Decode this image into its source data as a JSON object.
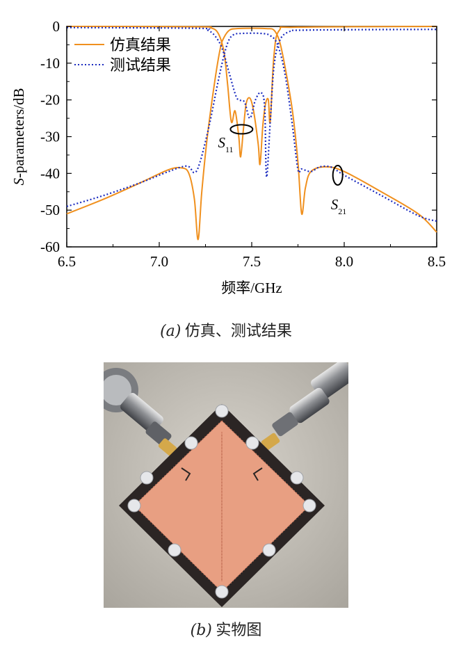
{
  "chart_data": {
    "type": "line",
    "xlabel": "频率/GHz",
    "ylabel_prefix": "S",
    "ylabel_suffix": "-parameters/dB",
    "xlim": [
      6.5,
      8.5
    ],
    "ylim": [
      -60,
      0
    ],
    "x_ticks": [
      "6.5",
      "7.0",
      "7.5",
      "8.0",
      "8.5"
    ],
    "y_ticks": [
      "0",
      "-10",
      "-20",
      "-30",
      "-40",
      "-50",
      "-60"
    ],
    "grid": false,
    "legend_position": "top-left",
    "series": [
      {
        "name": "仿真结果",
        "param": "S21",
        "color": "#f0901e",
        "style": "solid",
        "points": [
          [
            6.5,
            -51
          ],
          [
            6.7,
            -47
          ],
          [
            6.9,
            -42.5
          ],
          [
            7.05,
            -39
          ],
          [
            7.12,
            -38.5
          ],
          [
            7.16,
            -40
          ],
          [
            7.19,
            -47
          ],
          [
            7.21,
            -58
          ],
          [
            7.23,
            -45
          ],
          [
            7.26,
            -30
          ],
          [
            7.3,
            -15
          ],
          [
            7.33,
            -6
          ],
          [
            7.35,
            -3
          ],
          [
            7.38,
            -1
          ],
          [
            7.42,
            -0.6
          ],
          [
            7.5,
            -0.5
          ],
          [
            7.58,
            -0.6
          ],
          [
            7.62,
            -1
          ],
          [
            7.65,
            -4
          ],
          [
            7.68,
            -11
          ],
          [
            7.72,
            -23
          ],
          [
            7.75,
            -37
          ],
          [
            7.77,
            -51
          ],
          [
            7.79,
            -44
          ],
          [
            7.82,
            -39.5
          ],
          [
            7.9,
            -38.2
          ],
          [
            8.0,
            -39.5
          ],
          [
            8.2,
            -45
          ],
          [
            8.4,
            -51
          ],
          [
            8.5,
            -56
          ]
        ]
      },
      {
        "name": "仿真结果",
        "param": "S11",
        "color": "#f0901e",
        "style": "solid",
        "points": [
          [
            6.5,
            0
          ],
          [
            7.2,
            -0.1
          ],
          [
            7.28,
            -0.4
          ],
          [
            7.32,
            -2
          ],
          [
            7.35,
            -7
          ],
          [
            7.37,
            -16
          ],
          [
            7.39,
            -26
          ],
          [
            7.41,
            -23
          ],
          [
            7.43,
            -30
          ],
          [
            7.44,
            -35.5
          ],
          [
            7.455,
            -28
          ],
          [
            7.47,
            -21
          ],
          [
            7.49,
            -19.5
          ],
          [
            7.51,
            -23
          ],
          [
            7.535,
            -32
          ],
          [
            7.545,
            -37.5
          ],
          [
            7.56,
            -27
          ],
          [
            7.575,
            -21
          ],
          [
            7.59,
            -20
          ],
          [
            7.6,
            -26
          ],
          [
            7.62,
            -8
          ],
          [
            7.65,
            -1
          ],
          [
            7.75,
            -0.2
          ],
          [
            8.5,
            0
          ]
        ]
      },
      {
        "name": "测试结果",
        "param": "S21",
        "color": "#1b2bbf",
        "style": "dotted",
        "points": [
          [
            6.5,
            -49
          ],
          [
            6.7,
            -46
          ],
          [
            6.9,
            -42.5
          ],
          [
            7.05,
            -39.5
          ],
          [
            7.15,
            -38
          ],
          [
            7.19,
            -39.8
          ],
          [
            7.22,
            -37
          ],
          [
            7.27,
            -27
          ],
          [
            7.31,
            -17
          ],
          [
            7.34,
            -10
          ],
          [
            7.37,
            -4.5
          ],
          [
            7.4,
            -2.3
          ],
          [
            7.45,
            -1.9
          ],
          [
            7.55,
            -1.9
          ],
          [
            7.6,
            -2.5
          ],
          [
            7.64,
            -5
          ],
          [
            7.68,
            -13
          ],
          [
            7.72,
            -27
          ],
          [
            7.75,
            -39
          ],
          [
            7.77,
            -38.8
          ],
          [
            7.82,
            -39.5
          ],
          [
            7.87,
            -38.2
          ],
          [
            7.93,
            -38.3
          ],
          [
            8.0,
            -40.5
          ],
          [
            8.2,
            -46
          ],
          [
            8.4,
            -51.5
          ],
          [
            8.5,
            -53
          ]
        ]
      },
      {
        "name": "测试结果",
        "param": "S11",
        "color": "#1b2bbf",
        "style": "dotted",
        "points": [
          [
            6.5,
            -0.3
          ],
          [
            7.2,
            -0.5
          ],
          [
            7.26,
            -1
          ],
          [
            7.3,
            -2.5
          ],
          [
            7.34,
            -6
          ],
          [
            7.38,
            -13
          ],
          [
            7.42,
            -19.5
          ],
          [
            7.46,
            -20.5
          ],
          [
            7.49,
            -25
          ],
          [
            7.52,
            -20
          ],
          [
            7.55,
            -18
          ],
          [
            7.57,
            -22
          ],
          [
            7.58,
            -41
          ],
          [
            7.6,
            -26
          ],
          [
            7.62,
            -11
          ],
          [
            7.65,
            -4
          ],
          [
            7.7,
            -1.5
          ],
          [
            7.8,
            -1
          ],
          [
            8.5,
            -0.8
          ]
        ]
      }
    ],
    "annotations": [
      {
        "base": "S",
        "sub": "11",
        "x": 7.34,
        "y": -30.7
      },
      {
        "base": "S",
        "sub": "21",
        "x": 7.95,
        "y": -47.5
      }
    ]
  },
  "captions": {
    "a_label": "(a)",
    "a_text": "仿真、测试结果",
    "b_label": "(b)",
    "b_text": "实物图"
  },
  "colors": {
    "pcb_copper": "#e89f82",
    "pcb_board": "#2b2524",
    "connector_gold": "#d4a84a",
    "background_photo": "#c9c4bc"
  }
}
